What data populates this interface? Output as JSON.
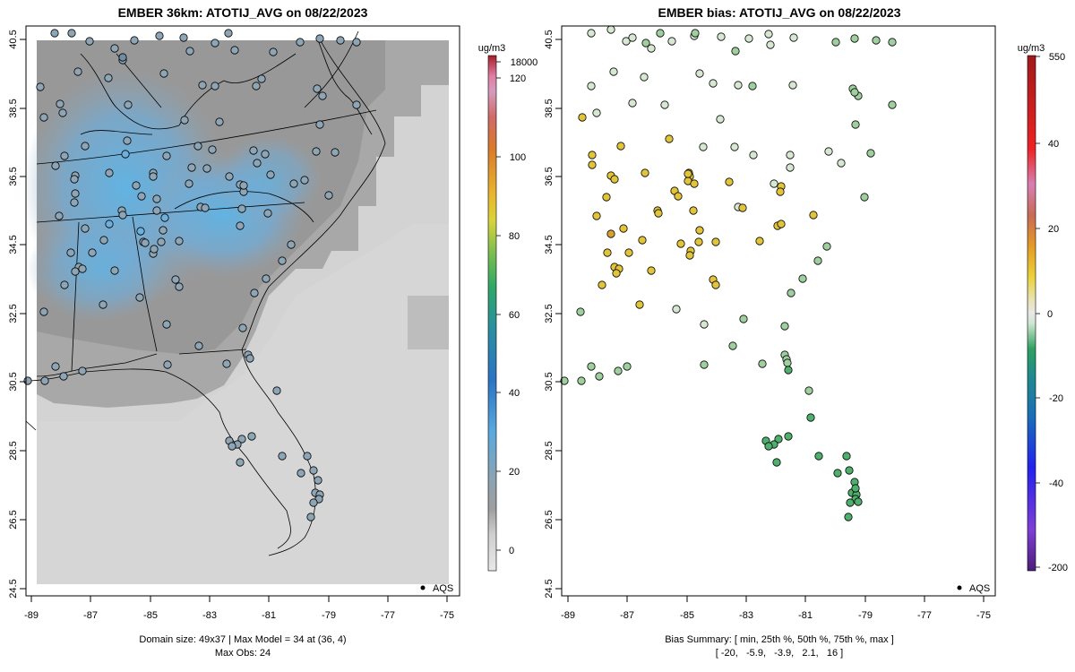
{
  "left_panel": {
    "title": "EMBER 36km: ATOTIJ_AVG on 08/22/2023",
    "footer_line1": "Domain size: 49x37 | Max Model = 34 at (36, 4)",
    "footer_line2": "Max Obs: 24",
    "legend_label": "AQS",
    "colorbar": {
      "unit": "ug/m3",
      "labels": [
        "18000",
        "120",
        "100",
        "80",
        "60",
        "40",
        "20",
        "0"
      ]
    }
  },
  "right_panel": {
    "title": "EMBER bias: ATOTIJ_AVG on 08/22/2023",
    "footer_line1": "Bias Summary: [ min, 25th %, 50th %, 75th %, max ]",
    "footer_line2": "[ -20,   -5.9,   -3.9,   2.1,   16 ]",
    "legend_label": "AQS",
    "colorbar": {
      "unit": "ug/m3",
      "labels": [
        "550",
        "40",
        "20",
        "0",
        "-20",
        "-40",
        "-200"
      ]
    }
  },
  "axes": {
    "x_ticks": [
      "-89",
      "-87",
      "-85",
      "-83",
      "-81",
      "-79",
      "-77",
      "-75"
    ],
    "y_ticks": [
      "40.5",
      "38.5",
      "36.5",
      "34.5",
      "32.5",
      "30.5",
      "28.5",
      "26.5",
      "24.5"
    ]
  },
  "colors": {
    "grey_model": "#9a9a9a",
    "blue_model": "#6fb1dc",
    "ocean_model": "#d3d3d3",
    "bias_green": "#5db878",
    "bias_yellow": "#e6c439"
  }
}
